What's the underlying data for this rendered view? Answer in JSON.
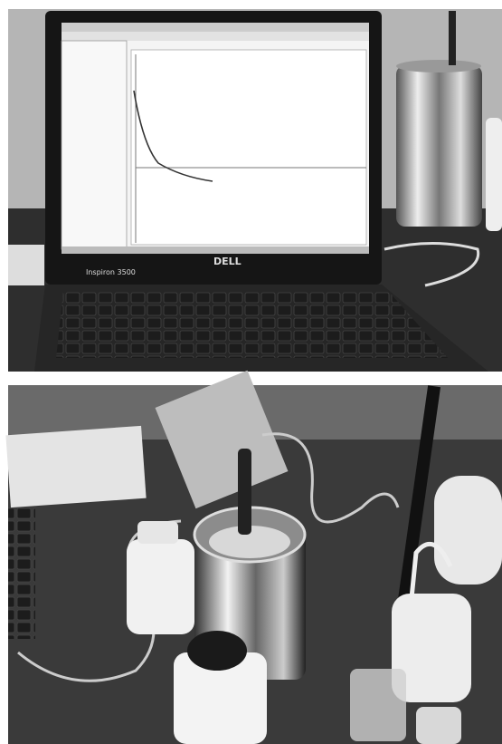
{
  "laptop_photo": {
    "brand": "DELL",
    "model": "Inspiron 3500"
  }
}
